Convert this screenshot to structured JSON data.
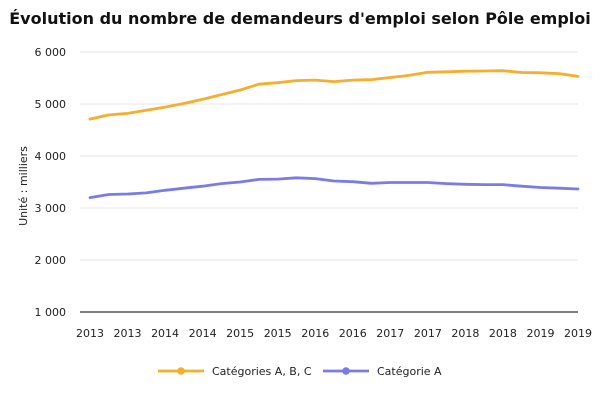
{
  "chart_data": {
    "type": "line",
    "title": "Évolution du nombre de demandeurs d'emploi selon Pôle emploi",
    "ylabel": "Unité : milliers",
    "xlabel": "",
    "ylim": [
      1000,
      6000
    ],
    "yticks": [
      1000,
      2000,
      3000,
      4000,
      5000,
      6000
    ],
    "ytick_labels": [
      "1 000",
      "2 000",
      "3 000",
      "4 000",
      "5 000",
      "6 000"
    ],
    "x_tick_labels": [
      "2013",
      "2013",
      "2014",
      "2014",
      "2015",
      "2015",
      "2016",
      "2016",
      "2017",
      "2017",
      "2018",
      "2018",
      "2019",
      "2019"
    ],
    "grid": "horizontal",
    "legend_position": "bottom",
    "series": [
      {
        "name": "Catégories A, B, C",
        "color": "#F5AE2D",
        "values": [
          4710,
          4790,
          4820,
          4880,
          4940,
          5010,
          5090,
          5180,
          5270,
          5380,
          5410,
          5450,
          5460,
          5430,
          5460,
          5470,
          5510,
          5550,
          5610,
          5620,
          5630,
          5635,
          5640,
          5605,
          5600,
          5585,
          5530
        ]
      },
      {
        "name": "Catégorie A",
        "color": "#7B7BE8",
        "values": [
          3200,
          3260,
          3270,
          3290,
          3340,
          3380,
          3420,
          3470,
          3500,
          3550,
          3555,
          3580,
          3565,
          3520,
          3505,
          3475,
          3490,
          3490,
          3490,
          3470,
          3455,
          3450,
          3450,
          3420,
          3395,
          3380,
          3365
        ]
      }
    ]
  }
}
